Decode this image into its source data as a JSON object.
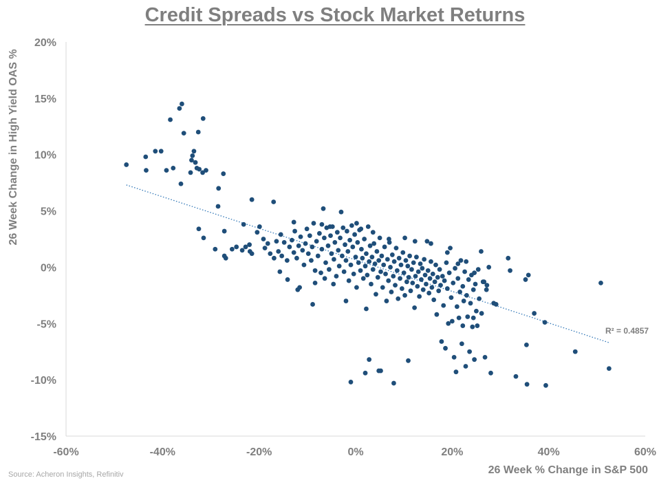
{
  "title": "Credit Spreads vs Stock Market Returns",
  "source": "Source: Acheron Insights, Refinitiv",
  "chart_data": {
    "type": "scatter",
    "title": "Credit Spreads vs Stock Market Returns",
    "xlabel": "26 Week % Change in S&P 500",
    "ylabel": "26 Week Change in High Yield OAS %",
    "xlim": [
      -60,
      60
    ],
    "ylim": [
      -15,
      20
    ],
    "x_ticks": [
      -60,
      -40,
      -20,
      0,
      20,
      40,
      60
    ],
    "x_tick_labels": [
      "-60%",
      "-40%",
      "-20%",
      "0%",
      "20%",
      "40%",
      "60%"
    ],
    "y_ticks": [
      20,
      15,
      10,
      5,
      0,
      -5,
      -10,
      -15
    ],
    "y_tick_labels": [
      "20%",
      "15%",
      "10%",
      "5%",
      "0%",
      "-5%",
      "-10%",
      "-15%"
    ],
    "grid": false,
    "legend": "none",
    "marker_color": "#1f4e79",
    "trendline": {
      "type": "linear",
      "label": "R² = 0.4857",
      "x_range": [
        -47.5,
        52.5
      ],
      "y_values": [
        7.3,
        -6.7
      ],
      "style": "dotted",
      "color": "#2e75b6"
    },
    "points": [
      [
        -47.5,
        9.1
      ],
      [
        -43.5,
        9.8
      ],
      [
        -43.4,
        8.6
      ],
      [
        -41.5,
        10.3
      ],
      [
        -40.3,
        10.3
      ],
      [
        -39.2,
        8.6
      ],
      [
        -37.8,
        8.8
      ],
      [
        -38.4,
        13.1
      ],
      [
        -36.5,
        14.1
      ],
      [
        -36.0,
        14.5
      ],
      [
        -35.6,
        11.9
      ],
      [
        -34.0,
        9.5
      ],
      [
        -33.8,
        9.9
      ],
      [
        -33.5,
        10.3
      ],
      [
        -33.2,
        9.3
      ],
      [
        -32.9,
        8.8
      ],
      [
        -32.4,
        8.7
      ],
      [
        -32.6,
        12.0
      ],
      [
        -31.6,
        13.2
      ],
      [
        -31.7,
        8.4
      ],
      [
        -31.0,
        8.6
      ],
      [
        -36.2,
        7.4
      ],
      [
        -34.2,
        8.4
      ],
      [
        -28.4,
        7.0
      ],
      [
        -27.4,
        8.3
      ],
      [
        -28.5,
        5.4
      ],
      [
        -32.5,
        3.4
      ],
      [
        -31.5,
        2.6
      ],
      [
        -27.2,
        3.2
      ],
      [
        -29.1,
        1.6
      ],
      [
        -27.2,
        1.0
      ],
      [
        -26.9,
        0.8
      ],
      [
        -25.6,
        1.6
      ],
      [
        -24.7,
        1.8
      ],
      [
        -23.5,
        1.5
      ],
      [
        -23.2,
        3.8
      ],
      [
        -22.8,
        1.8
      ],
      [
        -22.0,
        2.0
      ],
      [
        -21.9,
        1.4
      ],
      [
        -21.5,
        1.2
      ],
      [
        -20.4,
        3.1
      ],
      [
        -19.9,
        3.6
      ],
      [
        -19.1,
        2.5
      ],
      [
        -18.8,
        1.7
      ],
      [
        -18.2,
        2.1
      ],
      [
        -17.7,
        1.2
      ],
      [
        -16.9,
        0.8
      ],
      [
        -16.4,
        2.3
      ],
      [
        -16.0,
        1.4
      ],
      [
        -15.5,
        2.9
      ],
      [
        -15.3,
        1.0
      ],
      [
        -14.8,
        2.2
      ],
      [
        -14.2,
        0.6
      ],
      [
        -13.7,
        1.8
      ],
      [
        -13.2,
        2.4
      ],
      [
        -12.8,
        1.3
      ],
      [
        -12.6,
        3.2
      ],
      [
        -12.2,
        0.8
      ],
      [
        -11.8,
        1.9
      ],
      [
        -11.4,
        2.7
      ],
      [
        -11.0,
        1.5
      ],
      [
        -10.7,
        0.2
      ],
      [
        -10.4,
        2.1
      ],
      [
        -10.1,
        3.4
      ],
      [
        -9.8,
        1.2
      ],
      [
        -9.5,
        2.8
      ],
      [
        -9.2,
        0.6
      ],
      [
        -9.0,
        1.8
      ],
      [
        -8.7,
        3.9
      ],
      [
        -8.4,
        -0.3
      ],
      [
        -8.1,
        2.3
      ],
      [
        -7.8,
        1.0
      ],
      [
        -7.5,
        3.0
      ],
      [
        -7.2,
        -0.5
      ],
      [
        -7.0,
        1.6
      ],
      [
        -6.7,
        5.2
      ],
      [
        -6.5,
        2.6
      ],
      [
        -6.2,
        0.4
      ],
      [
        -6.0,
        3.5
      ],
      [
        -5.7,
        1.9
      ],
      [
        -5.5,
        -0.2
      ],
      [
        -5.2,
        2.8
      ],
      [
        -5.0,
        1.2
      ],
      [
        -4.8,
        3.6
      ],
      [
        -4.5,
        0.7
      ],
      [
        -4.3,
        2.2
      ],
      [
        -4.0,
        -0.8
      ],
      [
        -3.8,
        3.1
      ],
      [
        -3.6,
        1.5
      ],
      [
        -3.4,
        0.1
      ],
      [
        -3.2,
        2.6
      ],
      [
        -3.0,
        4.9
      ],
      [
        -2.8,
        1.0
      ],
      [
        -2.6,
        3.5
      ],
      [
        -2.4,
        -0.4
      ],
      [
        -2.2,
        2.0
      ],
      [
        -2.0,
        0.6
      ],
      [
        -1.8,
        3.2
      ],
      [
        -1.6,
        1.4
      ],
      [
        -1.4,
        -1.2
      ],
      [
        -1.2,
        2.4
      ],
      [
        -1.0,
        0.2
      ],
      [
        -0.8,
        3.7
      ],
      [
        -0.6,
        1.8
      ],
      [
        -0.4,
        -0.6
      ],
      [
        -0.2,
        2.9
      ],
      [
        0.0,
        0.9
      ],
      [
        0.2,
        -1.8
      ],
      [
        0.4,
        2.2
      ],
      [
        0.6,
        0.4
      ],
      [
        0.8,
        3.3
      ],
      [
        1.0,
        -0.3
      ],
      [
        1.2,
        1.6
      ],
      [
        1.4,
        0.8
      ],
      [
        1.6,
        -1.0
      ],
      [
        1.8,
        2.5
      ],
      [
        2.0,
        0.1
      ],
      [
        2.2,
        1.2
      ],
      [
        2.4,
        -0.7
      ],
      [
        2.6,
        3.6
      ],
      [
        2.8,
        0.5
      ],
      [
        3.0,
        1.9
      ],
      [
        3.2,
        -1.5
      ],
      [
        3.4,
        0.9
      ],
      [
        3.6,
        -0.2
      ],
      [
        3.8,
        2.1
      ],
      [
        4.0,
        0.3
      ],
      [
        4.2,
        -2.4
      ],
      [
        4.4,
        1.4
      ],
      [
        4.6,
        -0.9
      ],
      [
        4.8,
        0.6
      ],
      [
        5.0,
        2.6
      ],
      [
        5.2,
        -0.4
      ],
      [
        5.4,
        1.0
      ],
      [
        5.6,
        -1.8
      ],
      [
        5.8,
        0.2
      ],
      [
        6.0,
        1.8
      ],
      [
        6.2,
        -0.6
      ],
      [
        6.4,
        -3.0
      ],
      [
        6.6,
        0.7
      ],
      [
        6.8,
        -1.2
      ],
      [
        7.0,
        2.2
      ],
      [
        7.2,
        0.0
      ],
      [
        7.4,
        -2.2
      ],
      [
        7.6,
        1.1
      ],
      [
        7.8,
        -0.8
      ],
      [
        8.0,
        0.5
      ],
      [
        8.2,
        -1.6
      ],
      [
        8.4,
        1.7
      ],
      [
        8.6,
        -0.3
      ],
      [
        8.8,
        -2.8
      ],
      [
        9.0,
        0.8
      ],
      [
        9.2,
        -1.0
      ],
      [
        9.4,
        0.2
      ],
      [
        9.6,
        -1.9
      ],
      [
        9.8,
        1.3
      ],
      [
        10.0,
        -0.5
      ],
      [
        10.2,
        -2.5
      ],
      [
        10.4,
        0.6
      ],
      [
        10.6,
        -1.3
      ],
      [
        10.8,
        0.1
      ],
      [
        11.0,
        -0.9
      ],
      [
        11.2,
        1.0
      ],
      [
        11.4,
        -2.1
      ],
      [
        11.6,
        -0.2
      ],
      [
        11.8,
        -1.4
      ],
      [
        12.0,
        0.4
      ],
      [
        12.2,
        -3.6
      ],
      [
        12.4,
        -0.8
      ],
      [
        12.6,
        0.9
      ],
      [
        12.8,
        -1.7
      ],
      [
        13.0,
        -0.4
      ],
      [
        13.2,
        -2.6
      ],
      [
        13.4,
        0.3
      ],
      [
        13.6,
        -1.1
      ],
      [
        13.8,
        -0.1
      ],
      [
        14.0,
        -2.0
      ],
      [
        14.2,
        0.7
      ],
      [
        14.4,
        -0.7
      ],
      [
        14.6,
        -1.5
      ],
      [
        14.8,
        2.3
      ],
      [
        15.0,
        -0.3
      ],
      [
        15.2,
        -2.3
      ],
      [
        15.4,
        -1.0
      ],
      [
        15.6,
        0.5
      ],
      [
        15.8,
        -1.8
      ],
      [
        16.0,
        -0.6
      ],
      [
        16.2,
        -2.9
      ],
      [
        16.4,
        -1.3
      ],
      [
        16.6,
        0.2
      ],
      [
        16.8,
        -4.2
      ],
      [
        17.0,
        -0.9
      ],
      [
        17.2,
        -2.1
      ],
      [
        17.4,
        -0.2
      ],
      [
        17.6,
        -1.6
      ],
      [
        17.8,
        -6.6
      ],
      [
        18.0,
        -0.8
      ],
      [
        18.2,
        -3.4
      ],
      [
        18.4,
        -1.2
      ],
      [
        18.6,
        -7.2
      ],
      [
        18.8,
        0.4
      ],
      [
        19.0,
        -1.9
      ],
      [
        19.2,
        -5.0
      ],
      [
        19.4,
        -0.5
      ],
      [
        19.6,
        1.7
      ],
      [
        19.8,
        -2.7
      ],
      [
        20.0,
        -4.8
      ],
      [
        20.2,
        -1.4
      ],
      [
        20.4,
        -8.0
      ],
      [
        20.6,
        -0.1
      ],
      [
        20.8,
        -9.3
      ],
      [
        21.0,
        -3.5
      ],
      [
        21.2,
        -1.0
      ],
      [
        21.4,
        -4.5
      ],
      [
        21.6,
        -2.2
      ],
      [
        21.8,
        0.6
      ],
      [
        22.0,
        -6.8
      ],
      [
        22.2,
        -1.7
      ],
      [
        22.4,
        -3.0
      ],
      [
        22.6,
        -0.4
      ],
      [
        22.8,
        -8.8
      ],
      [
        23.0,
        -2.5
      ],
      [
        23.2,
        -4.4
      ],
      [
        23.4,
        -1.1
      ],
      [
        23.6,
        -7.5
      ],
      [
        23.8,
        -3.2
      ],
      [
        24.0,
        -0.7
      ],
      [
        24.2,
        -5.3
      ],
      [
        24.4,
        -2.0
      ],
      [
        24.6,
        -8.2
      ],
      [
        24.8,
        -1.5
      ],
      [
        25.0,
        -3.9
      ],
      [
        25.2,
        -5.2
      ],
      [
        25.4,
        -0.2
      ],
      [
        25.6,
        -2.8
      ],
      [
        26.0,
        1.4
      ],
      [
        26.4,
        -1.3
      ],
      [
        26.8,
        -8.0
      ],
      [
        27.2,
        -1.6
      ],
      [
        27.6,
        0.0
      ],
      [
        28.0,
        -9.4
      ],
      [
        28.6,
        -3.2
      ],
      [
        31.6,
        0.8
      ],
      [
        32.0,
        -0.3
      ],
      [
        33.2,
        -9.7
      ],
      [
        35.2,
        -1.1
      ],
      [
        35.4,
        -6.9
      ],
      [
        35.5,
        -10.4
      ],
      [
        35.8,
        -0.7
      ],
      [
        37.0,
        -4.1
      ],
      [
        39.2,
        -4.9
      ],
      [
        39.4,
        -10.5
      ],
      [
        45.5,
        -7.5
      ],
      [
        50.8,
        -1.4
      ],
      [
        52.5,
        -9.0
      ],
      [
        -1.0,
        -10.2
      ],
      [
        2.0,
        -9.4
      ],
      [
        2.8,
        -8.2
      ],
      [
        4.8,
        -9.2
      ],
      [
        5.2,
        -9.2
      ],
      [
        7.9,
        -10.3
      ],
      [
        10.9,
        -8.3
      ],
      [
        2.2,
        -3.7
      ],
      [
        -2.0,
        -3.0
      ],
      [
        -4.6,
        -1.5
      ],
      [
        -6.4,
        -1.0
      ],
      [
        -8.4,
        -1.4
      ],
      [
        -12.0,
        -2.0
      ],
      [
        -15.7,
        -0.4
      ],
      [
        -14.1,
        -1.1
      ],
      [
        -11.6,
        -1.8
      ],
      [
        -8.9,
        -3.3
      ],
      [
        -21.5,
        6.0
      ],
      [
        -17.0,
        5.8
      ],
      [
        -12.8,
        4.0
      ],
      [
        -7.0,
        3.8
      ],
      [
        -5.3,
        3.6
      ],
      [
        0.2,
        3.9
      ],
      [
        1.1,
        3.4
      ],
      [
        3.6,
        3.1
      ],
      [
        6.9,
        2.5
      ],
      [
        10.2,
        2.6
      ],
      [
        12.3,
        2.3
      ],
      [
        15.6,
        2.1
      ],
      [
        19.0,
        1.3
      ],
      [
        21.2,
        0.3
      ],
      [
        22.9,
        0.5
      ],
      [
        24.6,
        -0.5
      ],
      [
        26.6,
        -1.3
      ],
      [
        27.1,
        -2.0
      ],
      [
        29.1,
        -3.3
      ],
      [
        26.1,
        -4.1
      ],
      [
        24.4,
        -4.5
      ],
      [
        22.2,
        -5.2
      ]
    ]
  },
  "axes": {
    "x_title": "26 Week % Change in S&P 500",
    "y_title": "26 Week Change in High Yield OAS %"
  }
}
